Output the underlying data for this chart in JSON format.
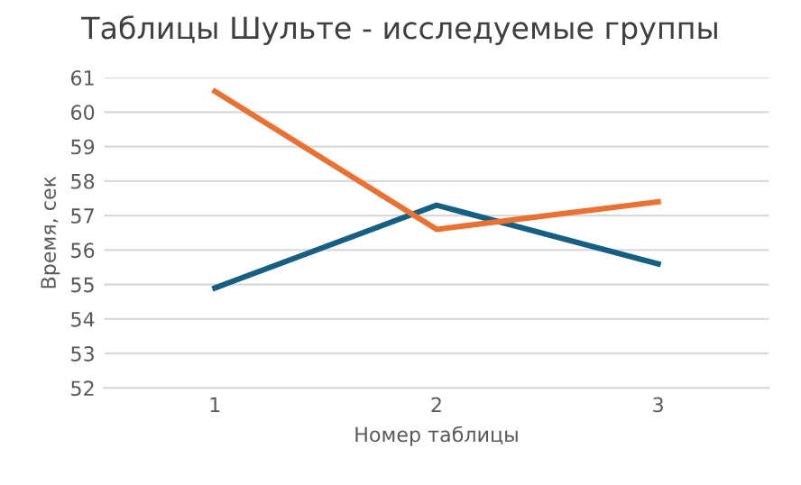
{
  "chart_data": {
    "type": "line",
    "title": "Таблицы Шульте - исследуемые группы",
    "xlabel": "Номер таблицы",
    "ylabel": "Время, сек",
    "categories": [
      "1",
      "2",
      "3"
    ],
    "series": [
      {
        "color": "#156082",
        "values": [
          54.9,
          57.3,
          55.6
        ]
      },
      {
        "color": "#e97132",
        "values": [
          60.6,
          56.6,
          57.4
        ]
      }
    ],
    "ylim": [
      52,
      61
    ],
    "yticks": [
      52,
      53,
      54,
      55,
      56,
      57,
      58,
      59,
      60,
      61
    ],
    "grid": "y",
    "marker": "none",
    "line_style": "solid"
  }
}
